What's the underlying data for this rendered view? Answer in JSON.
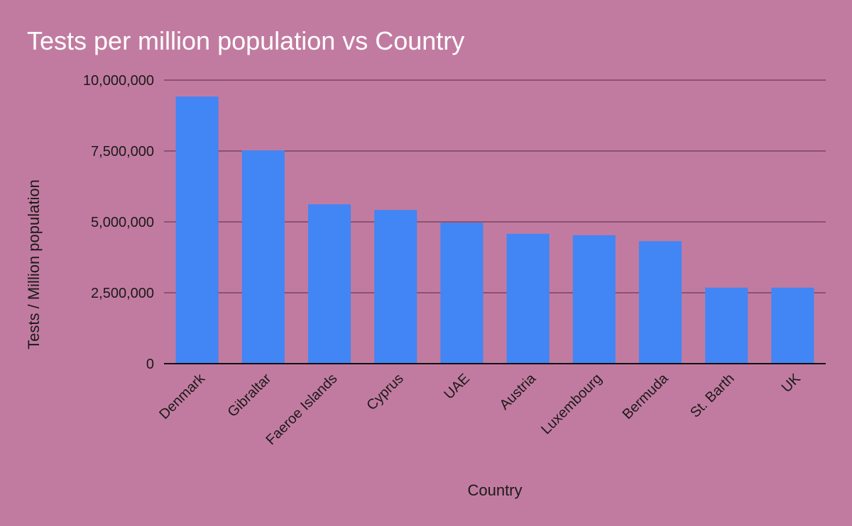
{
  "chart_data": {
    "type": "bar",
    "title": "Tests per million population vs Country",
    "xlabel": "Country",
    "ylabel": "Tests / Million population",
    "categories": [
      "Denmark",
      "Gibraltar",
      "Faeroe Islands",
      "Cyprus",
      "UAE",
      "Austria",
      "Luxembourg",
      "Bermuda",
      "St. Barth",
      "UK"
    ],
    "values": [
      9420000,
      7520000,
      5620000,
      5420000,
      4970000,
      4580000,
      4530000,
      4320000,
      2680000,
      2680000
    ],
    "ylim": [
      0,
      10000000
    ],
    "yticks": [
      0,
      2500000,
      5000000,
      7500000,
      10000000
    ],
    "ytick_labels": [
      "0",
      "2,500,000",
      "5,000,000",
      "7,500,000",
      "10,000,000"
    ],
    "grid": true,
    "legend": "none",
    "colors": {
      "background": "#c27ba0",
      "bar": "#4285f4",
      "title": "#ffffff"
    }
  }
}
